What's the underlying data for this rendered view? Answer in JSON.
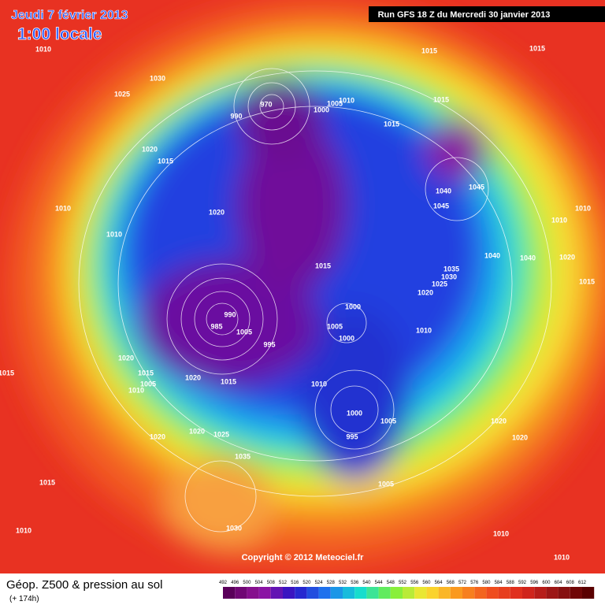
{
  "header": {
    "date": "Jeudi 7 février 2013",
    "time": "1:00 locale",
    "run": "Run GFS 18 Z du Mercredi 30 janvier 2013"
  },
  "copyright": "Copyright © 2012 Meteociel.fr",
  "footer": {
    "title": "Géop. Z500 & pression au sol",
    "lead": "(+ 174h)"
  },
  "scale": {
    "values": [
      492,
      496,
      500,
      504,
      508,
      512,
      516,
      520,
      524,
      528,
      532,
      536,
      540,
      544,
      548,
      552,
      556,
      560,
      564,
      568,
      572,
      576,
      580,
      584,
      588,
      592,
      596,
      600,
      604,
      608,
      612
    ]
  },
  "isobar_labels": [
    1010,
    1030,
    1025,
    1015,
    1015,
    1020,
    1015,
    1010,
    1010,
    1020,
    970,
    990,
    1000,
    1005,
    1010,
    1015,
    1015,
    1040,
    1045,
    1045,
    1010,
    1010,
    1040,
    1040,
    1020,
    1015,
    1015,
    1035,
    1030,
    1025,
    1020,
    990,
    985,
    1005,
    995,
    1000,
    1005,
    1000,
    1010,
    1020,
    1015,
    1005,
    1010,
    1020,
    1015,
    1010,
    1000,
    995,
    1005,
    1020,
    1020,
    1020,
    1020,
    1025,
    1035,
    1015,
    1005,
    1030,
    1010,
    1010,
    1010,
    1015
  ]
}
